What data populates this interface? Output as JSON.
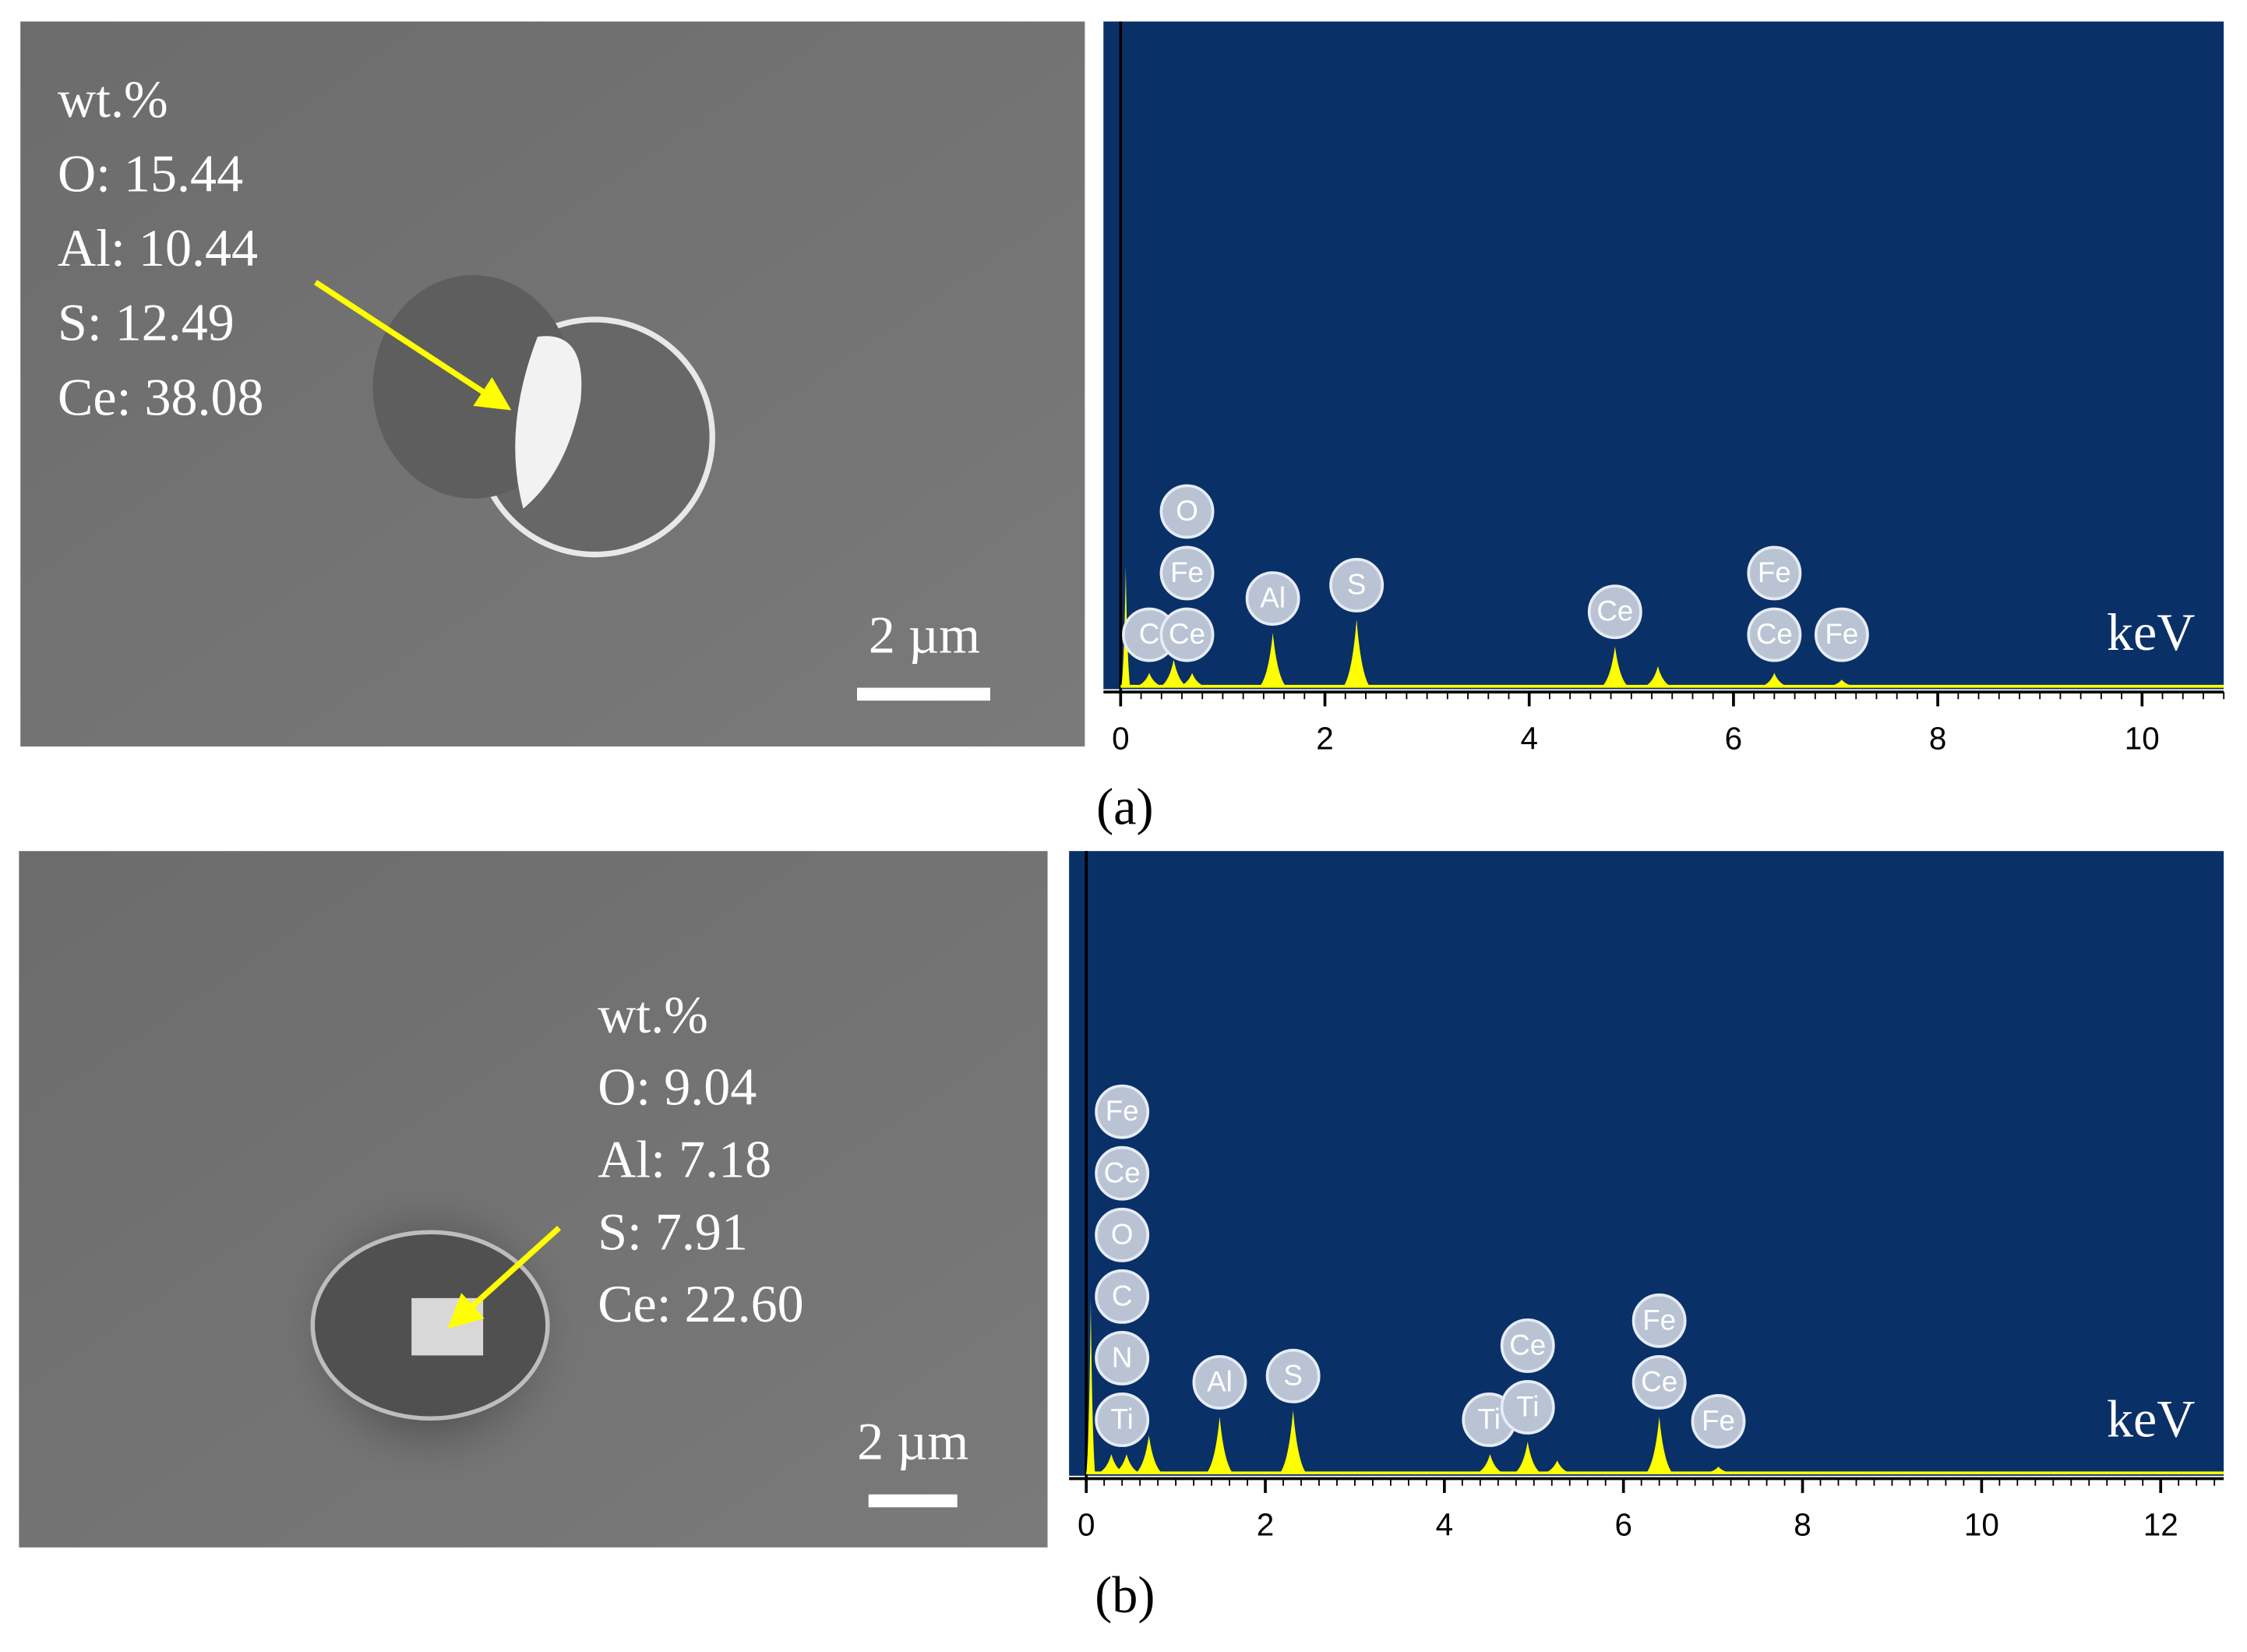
{
  "panels": [
    {
      "label": "(a)",
      "sem": {
        "annotation": [
          "wt.%",
          "O: 15.44",
          "Al: 10.44",
          "S: 12.49",
          "Ce: 38.08"
        ],
        "scale_bar": "2 µm"
      },
      "spectrum": {
        "unit": "keV",
        "xlim": [
          0,
          10.8
        ],
        "xticks": [
          0,
          2,
          4,
          6,
          8,
          10
        ],
        "peaks": [
          {
            "energy": 0.05,
            "height": 18
          },
          {
            "energy": 0.28,
            "height": 2
          },
          {
            "energy": 0.52,
            "height": 4
          },
          {
            "energy": 0.7,
            "height": 2
          },
          {
            "energy": 1.49,
            "height": 8
          },
          {
            "energy": 2.31,
            "height": 10
          },
          {
            "energy": 4.84,
            "height": 6
          },
          {
            "energy": 5.26,
            "height": 3
          },
          {
            "energy": 6.4,
            "height": 2
          },
          {
            "energy": 7.06,
            "height": 1
          }
        ],
        "labels": [
          {
            "energy": 0.28,
            "elements": [
              "C"
            ]
          },
          {
            "energy": 0.65,
            "elements": [
              "Ce",
              "Fe",
              "O"
            ]
          },
          {
            "energy": 1.49,
            "elements": [
              "Al"
            ]
          },
          {
            "energy": 2.31,
            "elements": [
              "S"
            ]
          },
          {
            "energy": 4.84,
            "elements": [
              "Ce"
            ]
          },
          {
            "energy": 6.4,
            "elements": [
              "Ce",
              "Fe"
            ]
          },
          {
            "energy": 7.06,
            "elements": [
              "Fe"
            ]
          }
        ]
      }
    },
    {
      "label": "(b)",
      "sem": {
        "annotation": [
          "wt.%",
          "O: 9.04",
          "Al: 7.18",
          "S: 7.91",
          "Ce: 22.60"
        ],
        "scale_bar": "2 µm"
      },
      "spectrum": {
        "unit": "keV",
        "xlim": [
          0,
          12.7
        ],
        "xticks": [
          0,
          2,
          4,
          6,
          8,
          10,
          12
        ],
        "peaks": [
          {
            "energy": 0.05,
            "height": 28
          },
          {
            "energy": 0.28,
            "height": 3
          },
          {
            "energy": 0.45,
            "height": 3
          },
          {
            "energy": 0.7,
            "height": 6
          },
          {
            "energy": 1.49,
            "height": 9
          },
          {
            "energy": 2.31,
            "height": 10
          },
          {
            "energy": 4.51,
            "height": 3
          },
          {
            "energy": 4.93,
            "height": 5
          },
          {
            "energy": 5.26,
            "height": 2
          },
          {
            "energy": 6.4,
            "height": 9
          },
          {
            "energy": 7.06,
            "height": 1
          }
        ],
        "labels": [
          {
            "energy": 0.4,
            "elements": [
              "Ti",
              "N",
              "C",
              "O",
              "Ce",
              "Fe"
            ]
          },
          {
            "energy": 1.49,
            "elements": [
              "Al"
            ]
          },
          {
            "energy": 2.31,
            "elements": [
              "S"
            ]
          },
          {
            "energy": 4.5,
            "elements": [
              "Ti"
            ]
          },
          {
            "energy": 4.93,
            "elements": [
              "Ti",
              "Ce"
            ]
          },
          {
            "energy": 6.4,
            "elements": [
              "Ce",
              "Fe"
            ]
          },
          {
            "energy": 7.06,
            "elements": [
              "Fe"
            ]
          }
        ]
      }
    }
  ]
}
